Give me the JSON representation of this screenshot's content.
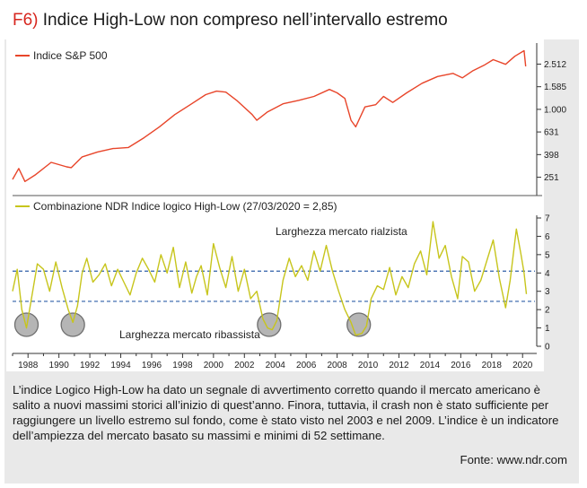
{
  "header": {
    "tag": "F6)",
    "title": "Indice High-Low non compreso nell’intervallo estremo"
  },
  "caption": "L’indice Logico High-Low ha dato un segnale di avvertimento corretto quando il mercato americano è salito a nuovi massimi storici all’inizio di quest’anno. Finora, tuttavia, il crash non è stato sufficiente per raggiungere un livello estremo sul fondo, come è stato visto nel 2003 e nel 2009. L’indice è un indicatore dell’ampiezza del mercato basato su massimi e minimi di 52 settimane.",
  "source": "Fonte: www.ndr.com",
  "colors": {
    "tag": "#d7261e",
    "sp500": "#e8452a",
    "highlow": "#c7c51c",
    "reference": "#2f5fa8",
    "circle": "#9c9c9c"
  },
  "chart_data": [
    {
      "type": "line",
      "series": [
        {
          "name": "Indice S&P 500",
          "scale": "log",
          "points": [
            [
              1987.0,
              240
            ],
            [
              1987.4,
              300
            ],
            [
              1987.8,
              230
            ],
            [
              1988.5,
              265
            ],
            [
              1989.5,
              340
            ],
            [
              1990.5,
              310
            ],
            [
              1990.8,
              305
            ],
            [
              1991.5,
              380
            ],
            [
              1992.5,
              420
            ],
            [
              1993.5,
              450
            ],
            [
              1994.5,
              460
            ],
            [
              1995.5,
              560
            ],
            [
              1996.5,
              700
            ],
            [
              1997.5,
              900
            ],
            [
              1998.5,
              1100
            ],
            [
              1999.5,
              1350
            ],
            [
              2000.2,
              1450
            ],
            [
              2000.8,
              1420
            ],
            [
              2001.5,
              1200
            ],
            [
              2002.5,
              900
            ],
            [
              2002.8,
              800
            ],
            [
              2003.5,
              950
            ],
            [
              2004.5,
              1120
            ],
            [
              2005.5,
              1200
            ],
            [
              2006.5,
              1300
            ],
            [
              2007.5,
              1500
            ],
            [
              2008.0,
              1400
            ],
            [
              2008.5,
              1250
            ],
            [
              2008.9,
              800
            ],
            [
              2009.2,
              700
            ],
            [
              2009.8,
              1050
            ],
            [
              2010.5,
              1100
            ],
            [
              2011.0,
              1300
            ],
            [
              2011.6,
              1150
            ],
            [
              2012.5,
              1400
            ],
            [
              2013.5,
              1700
            ],
            [
              2014.5,
              1950
            ],
            [
              2015.5,
              2080
            ],
            [
              2016.1,
              1900
            ],
            [
              2016.8,
              2200
            ],
            [
              2017.5,
              2450
            ],
            [
              2018.1,
              2750
            ],
            [
              2018.9,
              2500
            ],
            [
              2019.5,
              2950
            ],
            [
              2020.1,
              3300
            ],
            [
              2020.2,
              2400
            ]
          ]
        }
      ],
      "yticks": [
        "2.512",
        "1.585",
        "1.000",
        "631",
        "398",
        "251"
      ],
      "ytick_values": [
        2512,
        1585,
        1000,
        631,
        398,
        251
      ],
      "ylim": [
        200,
        4000
      ],
      "xlim": [
        1987,
        2020.8
      ]
    },
    {
      "type": "line",
      "series": [
        {
          "name": "Combinazione NDR Indice logico High-Low (27/03/2020 = 2,85)",
          "points": [
            [
              1987.0,
              3.0
            ],
            [
              1987.3,
              4.2
            ],
            [
              1987.6,
              2.0
            ],
            [
              1987.9,
              1.0
            ],
            [
              1988.2,
              2.5
            ],
            [
              1988.6,
              4.5
            ],
            [
              1989.0,
              4.2
            ],
            [
              1989.4,
              3.0
            ],
            [
              1989.8,
              4.6
            ],
            [
              1990.2,
              3.2
            ],
            [
              1990.6,
              2.0
            ],
            [
              1990.9,
              1.3
            ],
            [
              1991.2,
              2.2
            ],
            [
              1991.5,
              4.0
            ],
            [
              1991.8,
              4.8
            ],
            [
              1992.2,
              3.5
            ],
            [
              1992.6,
              3.9
            ],
            [
              1993.0,
              4.5
            ],
            [
              1993.4,
              3.3
            ],
            [
              1993.8,
              4.2
            ],
            [
              1994.2,
              3.5
            ],
            [
              1994.6,
              2.8
            ],
            [
              1995.0,
              4.0
            ],
            [
              1995.4,
              4.8
            ],
            [
              1995.8,
              4.2
            ],
            [
              1996.2,
              3.5
            ],
            [
              1996.6,
              5.0
            ],
            [
              1997.0,
              4.0
            ],
            [
              1997.4,
              5.4
            ],
            [
              1997.8,
              3.2
            ],
            [
              1998.2,
              4.6
            ],
            [
              1998.6,
              2.9
            ],
            [
              1998.9,
              3.8
            ],
            [
              1999.2,
              4.4
            ],
            [
              1999.6,
              2.8
            ],
            [
              2000.0,
              5.6
            ],
            [
              2000.4,
              4.3
            ],
            [
              2000.8,
              3.2
            ],
            [
              2001.2,
              4.9
            ],
            [
              2001.6,
              3.0
            ],
            [
              2002.0,
              4.2
            ],
            [
              2002.4,
              2.6
            ],
            [
              2002.8,
              3.0
            ],
            [
              2003.2,
              1.5
            ],
            [
              2003.5,
              1.0
            ],
            [
              2003.8,
              0.9
            ],
            [
              2004.1,
              1.4
            ],
            [
              2004.5,
              3.6
            ],
            [
              2004.9,
              4.8
            ],
            [
              2005.3,
              3.8
            ],
            [
              2005.7,
              4.4
            ],
            [
              2006.1,
              3.6
            ],
            [
              2006.5,
              5.2
            ],
            [
              2006.9,
              4.1
            ],
            [
              2007.3,
              5.5
            ],
            [
              2007.7,
              4.1
            ],
            [
              2008.1,
              3.0
            ],
            [
              2008.5,
              2.0
            ],
            [
              2008.9,
              1.3
            ],
            [
              2009.2,
              0.6
            ],
            [
              2009.6,
              0.7
            ],
            [
              2009.9,
              1.1
            ],
            [
              2010.2,
              2.6
            ],
            [
              2010.6,
              3.3
            ],
            [
              2011.0,
              3.1
            ],
            [
              2011.4,
              4.3
            ],
            [
              2011.8,
              2.8
            ],
            [
              2012.2,
              3.8
            ],
            [
              2012.6,
              3.2
            ],
            [
              2013.0,
              4.5
            ],
            [
              2013.4,
              5.2
            ],
            [
              2013.8,
              3.9
            ],
            [
              2014.2,
              6.8
            ],
            [
              2014.6,
              4.8
            ],
            [
              2015.0,
              5.5
            ],
            [
              2015.4,
              3.8
            ],
            [
              2015.8,
              2.6
            ],
            [
              2016.1,
              4.9
            ],
            [
              2016.5,
              4.6
            ],
            [
              2016.9,
              3.0
            ],
            [
              2017.3,
              3.6
            ],
            [
              2017.7,
              4.7
            ],
            [
              2018.1,
              5.8
            ],
            [
              2018.5,
              3.7
            ],
            [
              2018.9,
              2.1
            ],
            [
              2019.2,
              3.6
            ],
            [
              2019.6,
              6.4
            ],
            [
              2019.9,
              5.0
            ],
            [
              2020.1,
              4.0
            ],
            [
              2020.25,
              2.85
            ]
          ]
        }
      ],
      "reference_lines": [
        4.1,
        2.45
      ],
      "ylim": [
        0,
        7
      ],
      "yticks": [
        "7",
        "6",
        "5",
        "4",
        "3",
        "2",
        "1",
        "0"
      ],
      "xticks": [
        "1988",
        "1990",
        "1992",
        "1994",
        "1996",
        "1998",
        "2000",
        "2002",
        "2004",
        "2006",
        "2008",
        "2010",
        "2012",
        "2014",
        "2016",
        "2018",
        "2020"
      ],
      "annotations": [
        {
          "text": "Larghezza mercato rialzista"
        },
        {
          "text": "Larghezza mercato ribassista"
        }
      ],
      "highlighted_years": [
        1987.9,
        1990.9,
        2003.6,
        2009.4
      ],
      "xlim": [
        1987,
        2020.8
      ]
    }
  ]
}
